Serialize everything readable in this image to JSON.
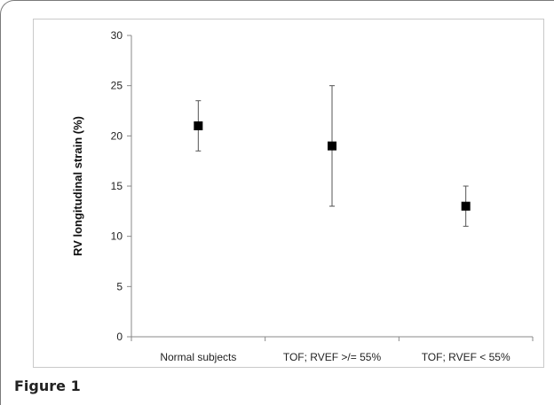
{
  "figure": {
    "caption": "Figure 1"
  },
  "chart_data": {
    "type": "scatter",
    "ylabel": "RV longitudinal strain (%)",
    "xlabel": "",
    "ylim": [
      0,
      30
    ],
    "yticks": [
      0,
      5,
      10,
      15,
      20,
      25,
      30
    ],
    "categories": [
      "Normal subjects",
      "TOF; RVEF >/= 55%",
      "TOF; RVEF < 55%"
    ],
    "series": [
      {
        "values": [
          21,
          19,
          13
        ],
        "error_low": [
          18.5,
          13,
          11
        ],
        "error_high": [
          23.5,
          25,
          15
        ]
      }
    ],
    "marker": "square",
    "grid": false,
    "colors": {
      "marker": "#000000",
      "error_bar": "#555555",
      "axis": "#888888"
    }
  }
}
